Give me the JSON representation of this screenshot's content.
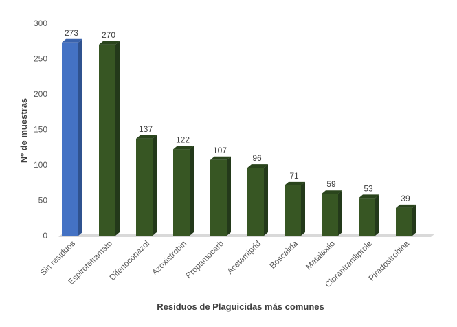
{
  "chart_data": {
    "type": "bar",
    "categories": [
      "Sin residuos",
      "Espirotetramato",
      "Difenoconazol",
      "Azoxistrobin",
      "Propamocarb",
      "Acetamiprid",
      "Boscalida",
      "Matalaxilo",
      "Clorantraniliprole",
      "Piradostrobina"
    ],
    "values": [
      273,
      270,
      137,
      122,
      107,
      96,
      71,
      59,
      53,
      39
    ],
    "xlabel": "Residuos de Plaguicidas  más comunes",
    "ylabel": "Nº de muestras",
    "ylim": [
      0,
      300
    ],
    "yticks": [
      0,
      50,
      100,
      150,
      200,
      250,
      300
    ],
    "grid": false,
    "legend": "none",
    "style": "3d-columns",
    "colors": {
      "highlight": "#4472c4",
      "highlight_side": "#2f528f",
      "highlight_top": "#3a63ad",
      "default": "#375623",
      "default_side": "#23391a",
      "default_top": "#2a451c",
      "floor": "#d9d9d9"
    },
    "highlight_index": 0
  }
}
